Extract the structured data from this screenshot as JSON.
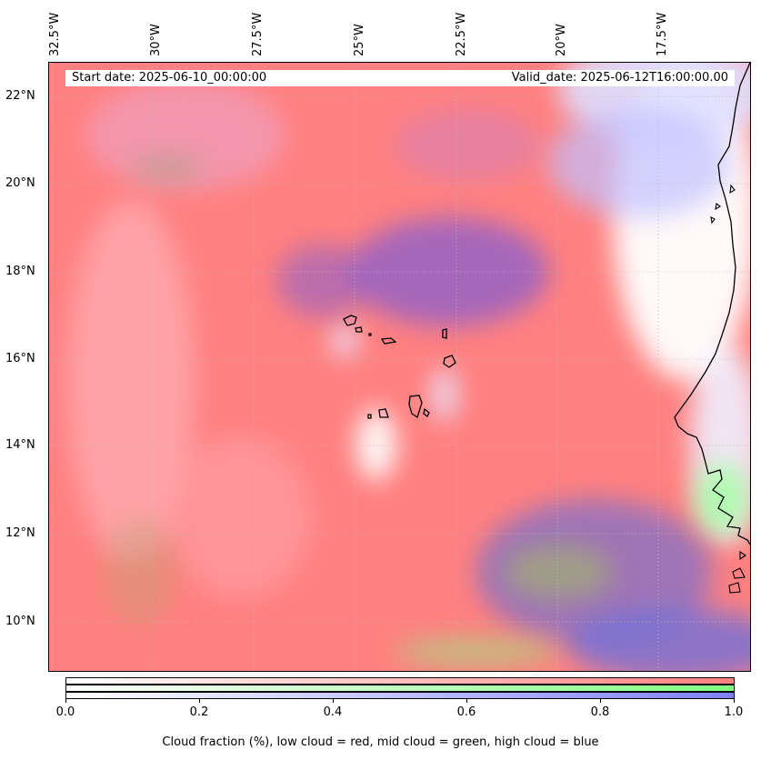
{
  "map": {
    "projection_extent": {
      "lon_min": -32.8,
      "lon_max": -15.1,
      "lat_min": 8.8,
      "lat_max": 22.8
    },
    "lon_ticks": [
      "32.5°W",
      "30°W",
      "27.5°W",
      "25°W",
      "22.5°W",
      "20°W",
      "17.5°W"
    ],
    "lat_ticks": [
      "22°N",
      "20°N",
      "18°N",
      "16°N",
      "14°N",
      "12°N",
      "10°N"
    ],
    "low_cloud_color": "#ff8080",
    "mid_cloud_color": "#80ff80",
    "high_cloud_color": "#8080ff",
    "gridlines": true,
    "features": [
      "cape-verde-islands",
      "west-africa-coastline"
    ]
  },
  "header": {
    "start_date": "Start date: 2025-06-10_00:00:00",
    "valid_date": "Valid_date: 2025-06-12T16:00:00.00"
  },
  "colorbar": {
    "ticks": [
      "0.0",
      "0.2",
      "0.4",
      "0.6",
      "0.8",
      "1.0"
    ],
    "title": "Cloud fraction (%), low cloud = red, mid cloud = green, high cloud = blue"
  }
}
